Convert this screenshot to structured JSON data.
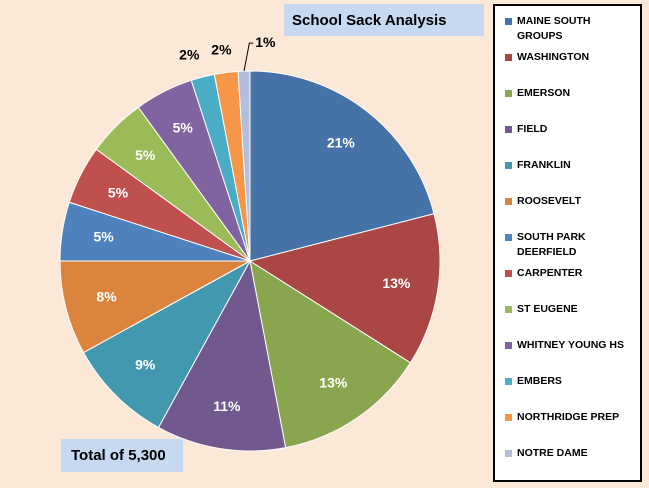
{
  "title": "School Sack Analysis",
  "total_label": "Total of 5,300",
  "chart_data": {
    "type": "pie",
    "title": "School Sack Analysis",
    "legend_position": "right",
    "slices": [
      {
        "name": "MAINE SOUTH GROUPS",
        "value": 21,
        "label": "21%",
        "color": "#4572a7"
      },
      {
        "name": "WASHINGTON",
        "value": 13,
        "label": "13%",
        "color": "#aa4643"
      },
      {
        "name": "EMERSON",
        "value": 13,
        "label": "13%",
        "color": "#89a54e"
      },
      {
        "name": "FIELD",
        "value": 11,
        "label": "11%",
        "color": "#71588f"
      },
      {
        "name": "FRANKLIN",
        "value": 9,
        "label": "9%",
        "color": "#4198af"
      },
      {
        "name": "ROOSEVELT",
        "value": 8,
        "label": "8%",
        "color": "#db843d"
      },
      {
        "name": "SOUTH PARK DEERFIELD",
        "value": 5,
        "label": "5%",
        "color": "#4f81bd"
      },
      {
        "name": "CARPENTER",
        "value": 5,
        "label": "5%",
        "color": "#c0504d"
      },
      {
        "name": "ST EUGENE",
        "value": 5,
        "label": "5%",
        "color": "#9bbb59"
      },
      {
        "name": "WHITNEY YOUNG HS",
        "value": 5,
        "label": "5%",
        "color": "#8064a2"
      },
      {
        "name": "EMBERS",
        "value": 2,
        "label": "2%",
        "color": "#4bacc6"
      },
      {
        "name": "NORTHRIDGE PREP",
        "value": 2,
        "label": "2%",
        "color": "#f79646"
      },
      {
        "name": "NOTRE DAME",
        "value": 1,
        "label": "1%",
        "color": "#b3bedd"
      }
    ]
  }
}
